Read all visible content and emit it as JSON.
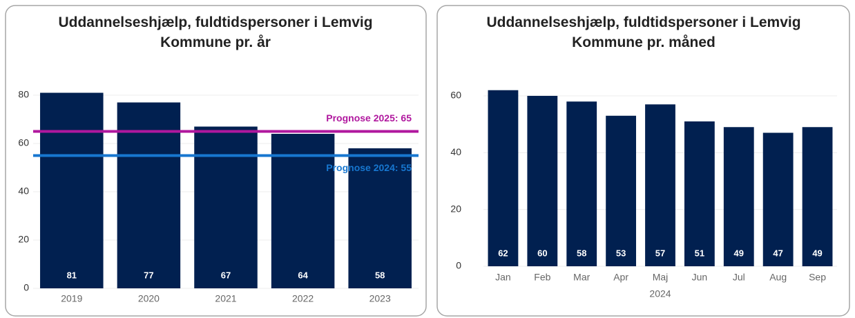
{
  "chart_data": [
    {
      "type": "bar",
      "title": "Uddannelseshjælp, fuldtidspersoner i Lemvig Kommune pr. år",
      "categories": [
        "2019",
        "2020",
        "2021",
        "2022",
        "2023"
      ],
      "values": [
        81,
        77,
        67,
        64,
        58
      ],
      "color": "#012050",
      "ylim": [
        0,
        85
      ],
      "yticks": [
        0,
        20,
        40,
        60,
        80
      ],
      "grid": true,
      "reference_lines": [
        {
          "value": 65,
          "label": "Prognose 2025: 65",
          "color": "#b0179e"
        },
        {
          "value": 55,
          "label": "Prognose 2024: 55",
          "color": "#1777d0"
        }
      ]
    },
    {
      "type": "bar",
      "title": "Uddannelseshjælp, fuldtidspersoner i Lemvig Kommune pr. måned",
      "categories": [
        "Jan",
        "Feb",
        "Mar",
        "Apr",
        "Maj",
        "Jun",
        "Jul",
        "Aug",
        "Sep"
      ],
      "values": [
        62,
        60,
        58,
        53,
        57,
        51,
        49,
        47,
        49
      ],
      "color": "#012050",
      "xlabel": "2024",
      "ylim": [
        0,
        64
      ],
      "yticks": [
        0,
        20,
        40,
        60
      ],
      "grid": true
    }
  ]
}
